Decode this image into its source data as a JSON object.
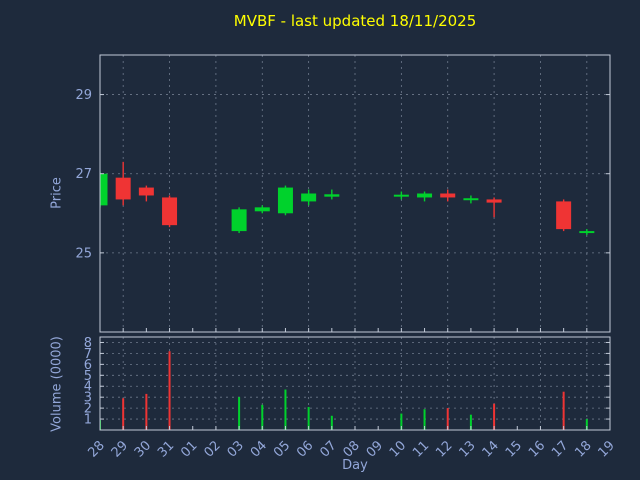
{
  "chart_data": {
    "type": "candlestick",
    "title": "MVBF - last updated 18/11/2025",
    "xlabel": "Day",
    "price_ylabel": "Price",
    "volume_ylabel": "Volume (0000)",
    "price_ticks": [
      25,
      27,
      29
    ],
    "price_ylim": [
      23.0,
      30.0
    ],
    "volume_ticks": [
      1,
      2,
      3,
      4,
      5,
      6,
      7,
      8
    ],
    "volume_ylim": [
      0,
      8.5
    ],
    "grid": "dashed",
    "legend": "none",
    "days": [
      "28",
      "29",
      "30",
      "31",
      "01",
      "02",
      "03",
      "04",
      "05",
      "06",
      "07",
      "08",
      "09",
      "10",
      "11",
      "12",
      "13",
      "14",
      "15",
      "16",
      "17",
      "18",
      "19"
    ],
    "candles": [
      {
        "day": "28",
        "open": 26.2,
        "high": 27.05,
        "low": 26.15,
        "close": 27.0,
        "volume": 0.9,
        "dir": "up"
      },
      {
        "day": "29",
        "open": 26.9,
        "high": 27.3,
        "low": 26.2,
        "close": 26.35,
        "volume": 2.9,
        "dir": "down"
      },
      {
        "day": "30",
        "open": 26.65,
        "high": 26.7,
        "low": 26.3,
        "close": 26.45,
        "volume": 3.3,
        "dir": "down"
      },
      {
        "day": "31",
        "open": 26.4,
        "high": 26.45,
        "low": 25.65,
        "close": 25.7,
        "volume": 7.2,
        "dir": "down"
      },
      {
        "day": "03",
        "open": 25.55,
        "high": 26.15,
        "low": 25.5,
        "close": 26.1,
        "volume": 3.0,
        "dir": "up"
      },
      {
        "day": "04",
        "open": 26.05,
        "high": 26.2,
        "low": 26.0,
        "close": 26.15,
        "volume": 2.3,
        "dir": "up"
      },
      {
        "day": "05",
        "open": 26.0,
        "high": 26.7,
        "low": 25.95,
        "close": 26.65,
        "volume": 3.7,
        "dir": "up"
      },
      {
        "day": "06",
        "open": 26.3,
        "high": 26.6,
        "low": 26.2,
        "close": 26.5,
        "volume": 2.1,
        "dir": "up"
      },
      {
        "day": "07",
        "open": 26.42,
        "high": 26.6,
        "low": 26.35,
        "close": 26.48,
        "volume": 1.3,
        "dir": "up"
      },
      {
        "day": "10",
        "open": 26.42,
        "high": 26.55,
        "low": 26.35,
        "close": 26.47,
        "volume": 1.5,
        "dir": "up"
      },
      {
        "day": "11",
        "open": 26.4,
        "high": 26.55,
        "low": 26.3,
        "close": 26.5,
        "volume": 1.9,
        "dir": "up"
      },
      {
        "day": "12",
        "open": 26.5,
        "high": 26.6,
        "low": 26.3,
        "close": 26.4,
        "volume": 2.0,
        "dir": "down"
      },
      {
        "day": "13",
        "open": 26.33,
        "high": 26.45,
        "low": 26.25,
        "close": 26.38,
        "volume": 1.4,
        "dir": "up"
      },
      {
        "day": "14",
        "open": 26.35,
        "high": 26.4,
        "low": 25.9,
        "close": 26.27,
        "volume": 2.4,
        "dir": "down"
      },
      {
        "day": "17",
        "open": 26.3,
        "high": 26.35,
        "low": 25.55,
        "close": 25.6,
        "volume": 3.5,
        "dir": "down"
      },
      {
        "day": "18",
        "open": 25.5,
        "high": 25.6,
        "low": 25.45,
        "close": 25.55,
        "volume": 1.0,
        "dir": "up"
      }
    ],
    "colors": {
      "background": "#1e2a3c",
      "text": "#93a7d9",
      "title": "#ffff00",
      "grid": "#8a95a8",
      "border": "#c3cbd9",
      "up": "#00d22c",
      "down": "#ef3434"
    }
  }
}
